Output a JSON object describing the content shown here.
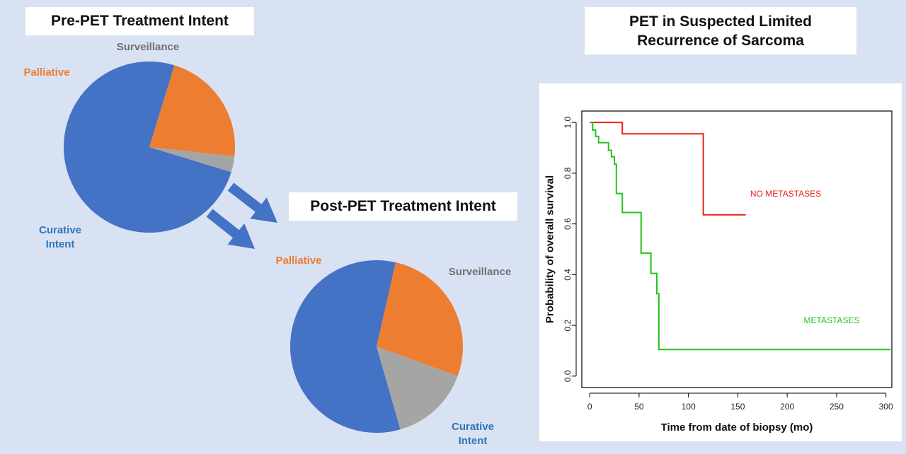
{
  "colors": {
    "background": "#d9e2f2",
    "curative": "#4472c4",
    "palliative": "#ed7d31",
    "surveillance": "#a5a5a5",
    "arrow": "#4472c4",
    "no_metastases": "#e8211c",
    "metastases": "#22c41c",
    "curative_label": "#2e75b6",
    "surveillance_label": "#707070"
  },
  "titles": {
    "pre": "Pre-PET Treatment Intent",
    "post": "Post-PET Treatment Intent",
    "km_line1": "PET in Suspected Limited",
    "km_line2": "Recurrence of Sarcoma"
  },
  "chart_data": [
    {
      "type": "pie",
      "title": "Pre-PET Treatment Intent",
      "slices": [
        {
          "label": "Curative Intent",
          "label_lines": [
            "Curative",
            "Intent"
          ],
          "value": 75,
          "color": "#4472c4"
        },
        {
          "label": "Palliative",
          "label_lines": [
            "Palliative"
          ],
          "value": 22,
          "color": "#ed7d31"
        },
        {
          "label": "Surveillance",
          "label_lines": [
            "Surveillance"
          ],
          "value": 3,
          "color": "#a5a5a5"
        }
      ]
    },
    {
      "type": "pie",
      "title": "Post-PET Treatment Intent",
      "slices": [
        {
          "label": "Curative Intent",
          "label_lines": [
            "Curative",
            "Intent"
          ],
          "value": 58,
          "color": "#4472c4"
        },
        {
          "label": "Palliative",
          "label_lines": [
            "Palliative"
          ],
          "value": 27,
          "color": "#ed7d31"
        },
        {
          "label": "Surveillance",
          "label_lines": [
            "Surveillance"
          ],
          "value": 15,
          "color": "#a5a5a5"
        }
      ]
    },
    {
      "type": "line",
      "subtype": "step",
      "title": "PET in Suspected Limited Recurrence of Sarcoma",
      "xlabel": "Time from date of biopsy (mo)",
      "ylabel": "Probability of overall survival",
      "xlim": [
        0,
        300
      ],
      "ylim": [
        0,
        1
      ],
      "xticks": [
        0,
        50,
        100,
        150,
        200,
        250,
        300
      ],
      "yticks": [
        "0.0",
        "0.2",
        "0.4",
        "0.6",
        "0.8",
        "1.0"
      ],
      "grid": false,
      "series": [
        {
          "name": "NO METASTASES",
          "color": "#e8211c",
          "x": [
            0,
            33,
            33,
            115,
            115,
            158
          ],
          "y": [
            1.0,
            1.0,
            0.955,
            0.955,
            0.636,
            0.636
          ]
        },
        {
          "name": "METASTASES",
          "color": "#22c41c",
          "x": [
            0,
            3,
            3,
            6,
            6,
            9,
            9,
            19,
            19,
            22,
            22,
            25,
            25,
            27,
            27,
            33,
            33,
            52,
            52,
            62,
            62,
            68,
            68,
            70,
            70,
            185,
            185,
            305
          ],
          "y": [
            1.0,
            1.0,
            0.97,
            0.97,
            0.945,
            0.945,
            0.92,
            0.92,
            0.89,
            0.89,
            0.865,
            0.865,
            0.835,
            0.835,
            0.72,
            0.72,
            0.645,
            0.645,
            0.485,
            0.485,
            0.405,
            0.405,
            0.325,
            0.325,
            0.105,
            0.105,
            0.105,
            0.105
          ]
        }
      ]
    }
  ]
}
